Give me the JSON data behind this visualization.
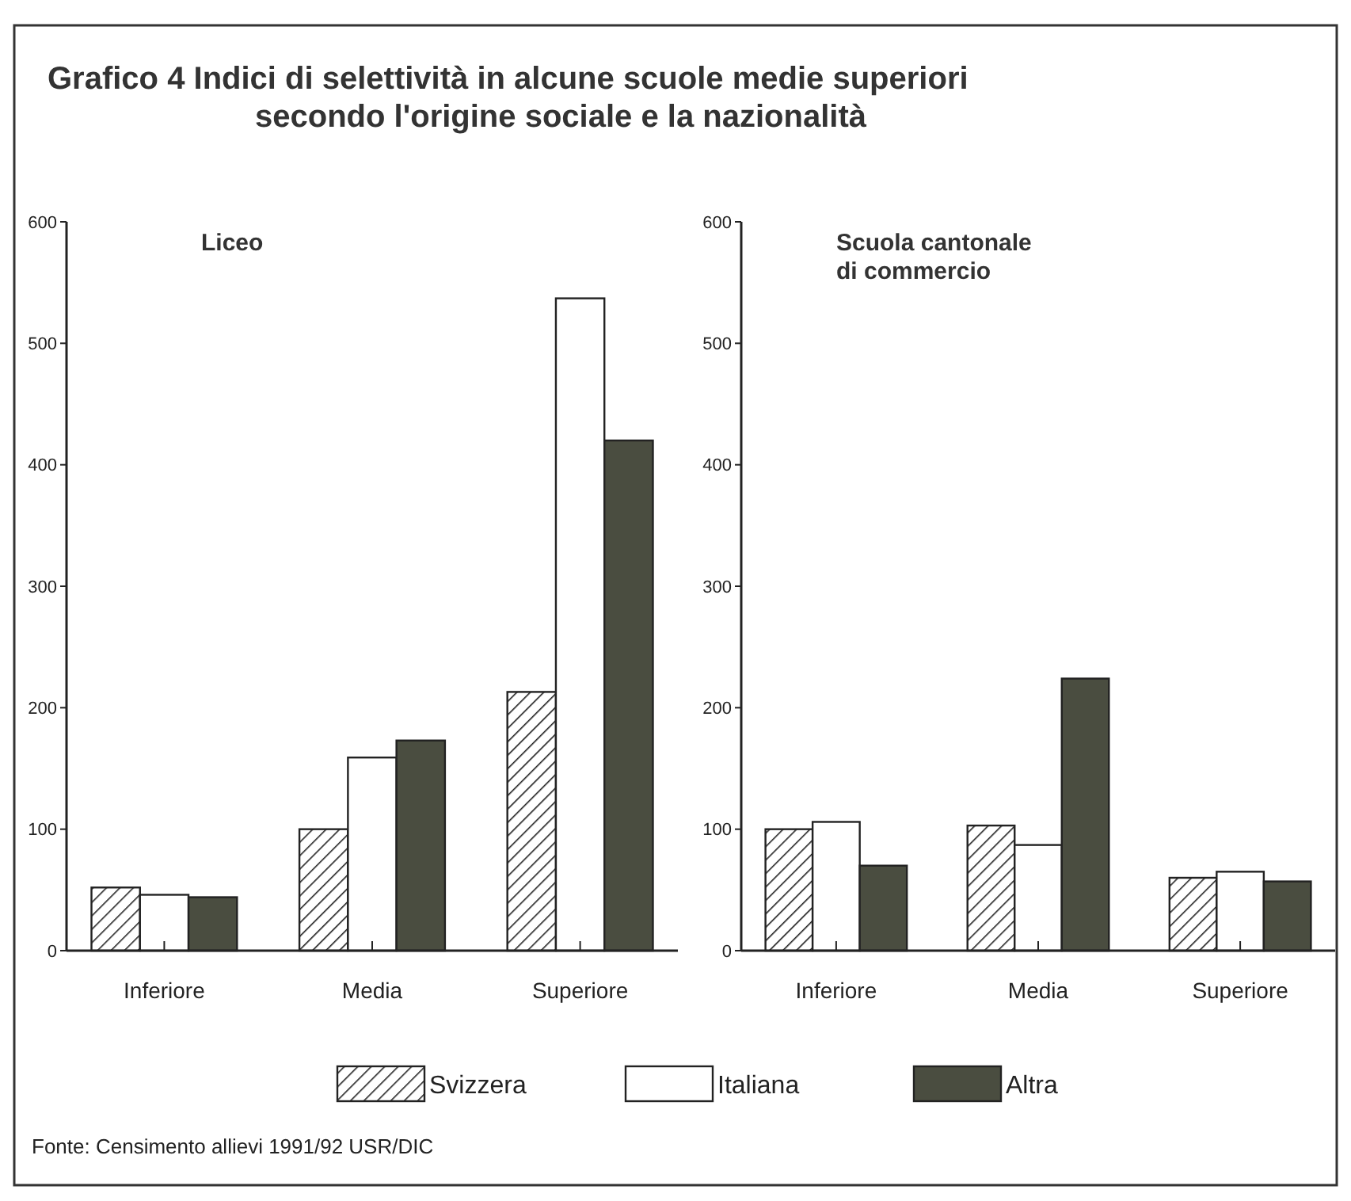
{
  "chart_data": [
    {
      "type": "bar",
      "title": "Grafico 4  Indici di selettività in alcune scuole medie superiori\nsecondo l'origine sociale e la nazionalità",
      "subtitle": "Liceo",
      "categories": [
        "Inferiore",
        "Media",
        "Superiore"
      ],
      "series": [
        {
          "name": "Svizzera",
          "color": "#222222",
          "values": [
            52,
            100,
            213
          ]
        },
        {
          "name": "Italiana",
          "color": "#ffffff",
          "values": [
            46,
            159,
            537
          ]
        },
        {
          "name": "Altra",
          "color": "#4a4d40",
          "values": [
            44,
            173,
            420
          ]
        }
      ],
      "ylim": [
        0,
        600
      ],
      "yticks": [
        0,
        100,
        200,
        300,
        400,
        500,
        600
      ],
      "legend": "bottom"
    },
    {
      "type": "bar",
      "subtitle": "Scuola cantonale\ndi commercio",
      "categories": [
        "Inferiore",
        "Media",
        "Superiore"
      ],
      "series": [
        {
          "color": "#222222",
          "values": [
            100,
            103,
            60
          ]
        },
        {
          "color": "#ffffff",
          "values": [
            106,
            87,
            65
          ]
        },
        {
          "color": "#4a4d40",
          "values": [
            70,
            224,
            57
          ]
        }
      ],
      "ylim": [
        0,
        600
      ],
      "yticks": [
        0,
        100,
        200,
        300,
        400,
        500,
        600
      ],
      "annotations": [
        "Fonte: Censimento allievi 1991/92 USR/DIC"
      ]
    }
  ]
}
